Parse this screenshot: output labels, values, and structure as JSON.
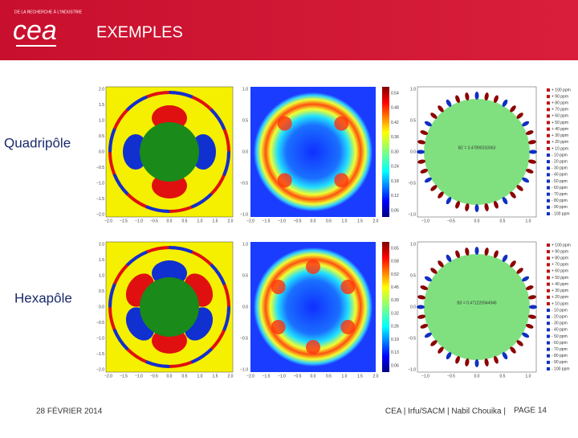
{
  "header": {
    "tagline": "DE LA RECHERCHE À L'INDUSTRIE",
    "logo": "cea",
    "title": "EXEMPLES"
  },
  "axes": {
    "square_yticks": [
      "2.0",
      "1.5",
      "1.0",
      "0.5",
      "0.0",
      "−0.5",
      "−1.0",
      "−1.5",
      "−2.0"
    ],
    "square_xticks": [
      "−2.0",
      "−1.5",
      "−1.0",
      "−0.5",
      "0.0",
      "0.5",
      "1.0",
      "1.5",
      "2.0"
    ],
    "map_yticks": [
      "1.0",
      "0.5",
      "0.0",
      "−0.5",
      "−1.0"
    ],
    "map_xticks": [
      "−2.0",
      "−1.5",
      "−1.0",
      "−0.5",
      "0.0",
      "0.5",
      "1.0",
      "1.5",
      "2.0"
    ],
    "ring_yticks": [
      "1.0",
      "0.5",
      "0.0",
      "−0.5",
      "−1.0"
    ],
    "ring_xticks": [
      "−1.0",
      "−0.5",
      "0.0",
      "0.5",
      "1.0"
    ],
    "ppm_scale": [
      "+ 100 ppm",
      "+ 90 ppm",
      "+ 80 ppm",
      "+ 70 ppm",
      "+ 60 ppm",
      "+ 50 ppm",
      "+ 40 ppm",
      "+ 30 ppm",
      "+ 20 ppm",
      "+ 10 ppm",
      "- 10 ppm",
      "- 20 ppm",
      "- 30 ppm",
      "- 40 ppm",
      "- 50 ppm",
      "- 60 ppm",
      "- 70 ppm",
      "- 80 ppm",
      "- 90 ppm",
      "- 100 ppm"
    ]
  },
  "rows": [
    {
      "label": "Quadripôle",
      "colorbar": [
        "0.54",
        "0.48",
        "0.42",
        "0.36",
        "0.30",
        "0.24",
        "0.18",
        "0.12",
        "0.06"
      ],
      "annotation": "B2 = 3.47890233363"
    },
    {
      "label": "Hexapôle",
      "colorbar": [
        "0.65",
        "0.58",
        "0.52",
        "0.45",
        "0.39",
        "0.32",
        "0.26",
        "0.19",
        "0.13",
        "0.06"
      ],
      "annotation": "B3 = 0.471220944946"
    }
  ],
  "footer": {
    "date": "28 FÉVRIER 2014",
    "credit": "CEA | Irfu/SACM | Nabil Chouika |",
    "page": "PAGE 14"
  }
}
